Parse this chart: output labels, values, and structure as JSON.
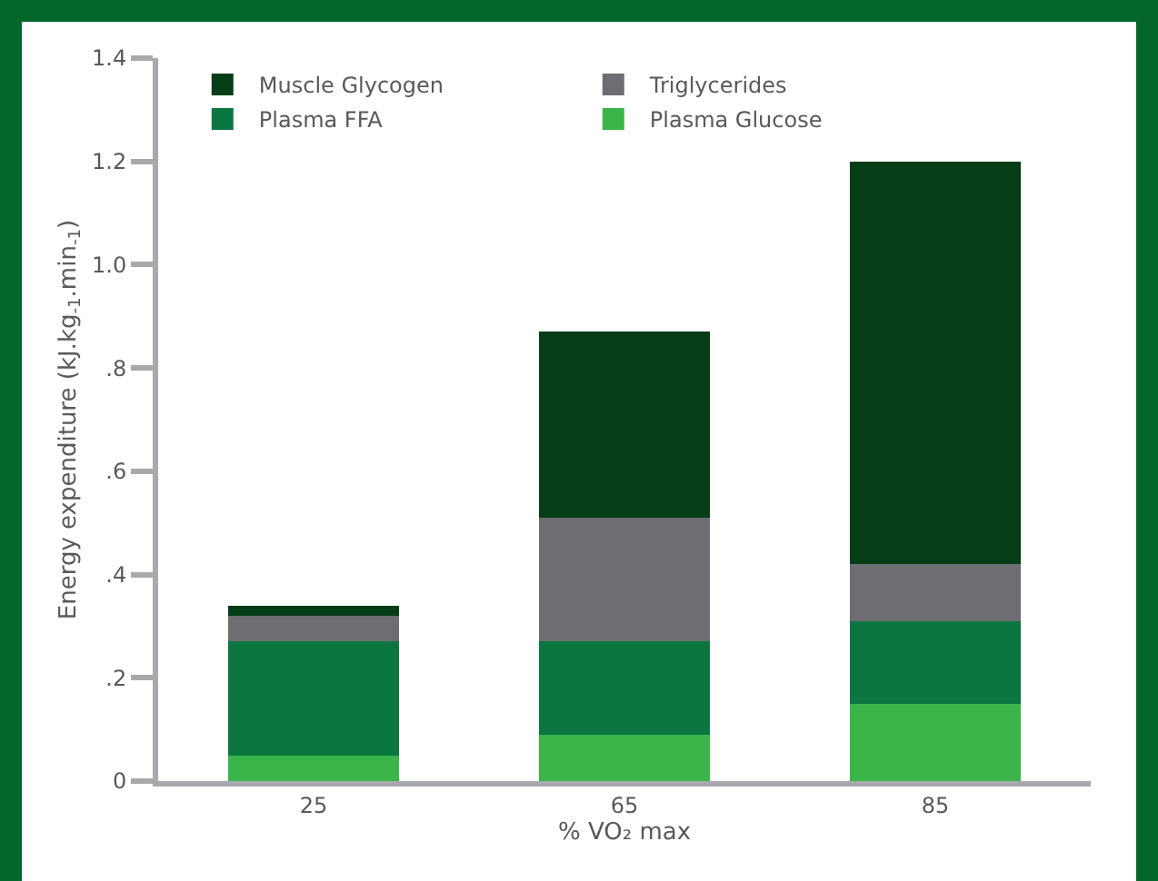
{
  "chart_data": {
    "type": "bar",
    "stacked": true,
    "categories": [
      "25",
      "65",
      "85"
    ],
    "series": [
      {
        "name": "Plasma Glucose",
        "color": "#3bb54a",
        "values": [
          0.05,
          0.09,
          0.15
        ]
      },
      {
        "name": "Plasma FFA",
        "color": "#0c7640",
        "values": [
          0.22,
          0.18,
          0.16
        ]
      },
      {
        "name": "Triglycerides",
        "color": "#6d6e71",
        "values": [
          0.05,
          0.24,
          0.11
        ]
      },
      {
        "name": "Muscle Glycogen",
        "color": "#043d16",
        "values": [
          0.02,
          0.36,
          0.78
        ]
      }
    ],
    "xlabel": "% VO₂ max",
    "ylabel": "Energy expenditure (kJ.kg$_{-1}$.min$_{-1}$)",
    "ylim": [
      0,
      1.4
    ],
    "yticks": [
      0,
      {
        "value": 0.2,
        "label": ".2"
      },
      {
        "value": 0.4,
        "label": ".4"
      },
      {
        "value": 0.6,
        "label": ".6"
      },
      {
        "value": 0.8,
        "label": ".8"
      },
      {
        "value": 1.0,
        "label": "1.0"
      },
      {
        "value": 1.2,
        "label": "1.2"
      },
      1.4
    ],
    "grid": false,
    "legend": "top left"
  }
}
